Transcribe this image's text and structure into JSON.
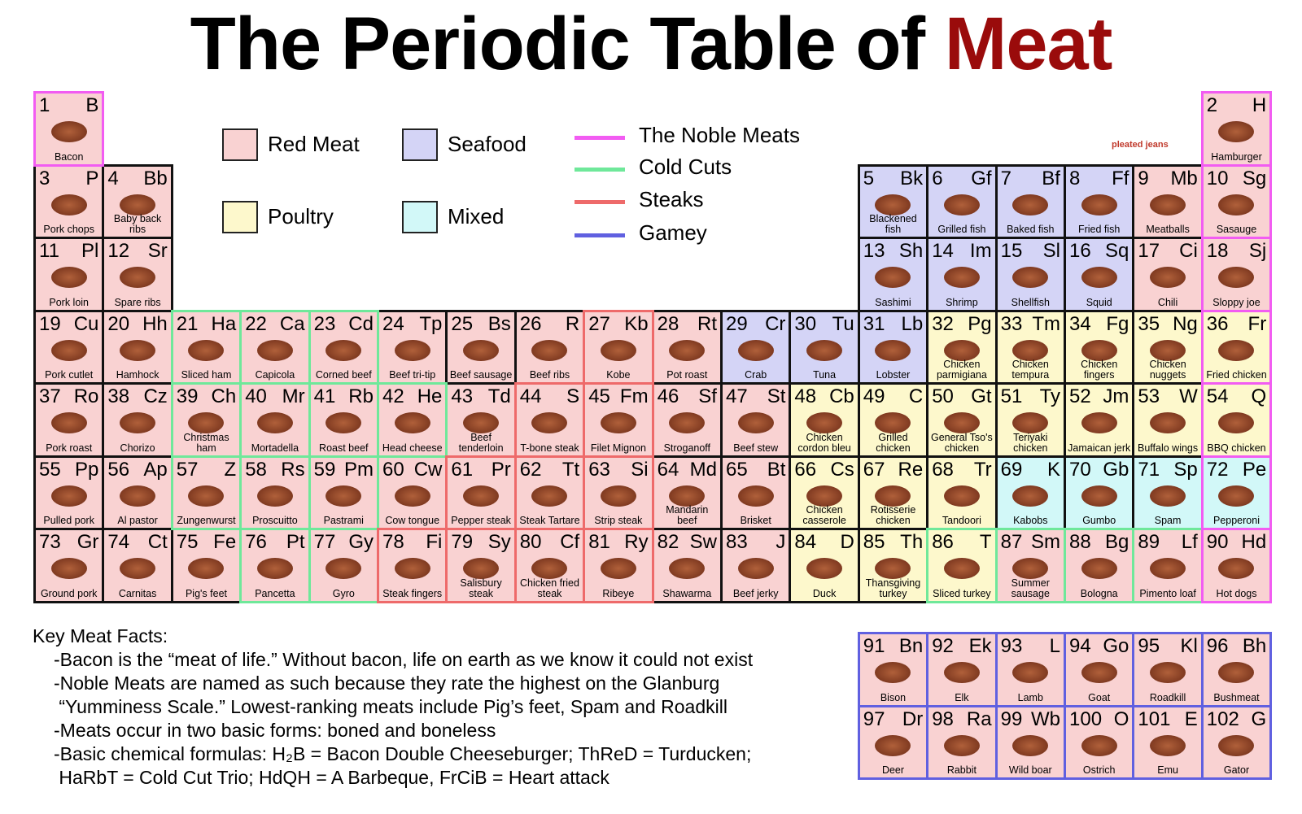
{
  "header": {
    "title": "The Periodic Table of ",
    "title_highlight": "Meat"
  },
  "logo": "pleated jeans",
  "legend": {
    "categories": [
      {
        "name": "Red Meat",
        "color": "#f9d2d2"
      },
      {
        "name": "Poultry",
        "color": "#fdf8cc"
      },
      {
        "name": "Seafood",
        "color": "#d4d4f6"
      },
      {
        "name": "Mixed",
        "color": "#d2f8f8"
      }
    ],
    "groups": [
      {
        "name": "The Noble Meats",
        "color": "#f25cf2"
      },
      {
        "name": "Cold Cuts",
        "color": "#6fe89a"
      },
      {
        "name": "Steaks",
        "color": "#ee6a6a"
      },
      {
        "name": "Gamey",
        "color": "#6060e0"
      }
    ]
  },
  "elements": [
    {
      "number": 1,
      "symbol": "B",
      "name": "Bacon",
      "category": "Red Meat",
      "group": "The Noble Meats"
    },
    {
      "number": 2,
      "symbol": "H",
      "name": "Hamburger",
      "category": "Red Meat",
      "group": "The Noble Meats"
    },
    {
      "number": 3,
      "symbol": "P",
      "name": "Pork chops",
      "category": "Red Meat",
      "group": null
    },
    {
      "number": 4,
      "symbol": "Bb",
      "name": "Baby back ribs",
      "category": "Red Meat",
      "group": null
    },
    {
      "number": 5,
      "symbol": "Bk",
      "name": "Blackened fish",
      "category": "Seafood",
      "group": null
    },
    {
      "number": 6,
      "symbol": "Gf",
      "name": "Grilled fish",
      "category": "Seafood",
      "group": null
    },
    {
      "number": 7,
      "symbol": "Bf",
      "name": "Baked fish",
      "category": "Seafood",
      "group": null
    },
    {
      "number": 8,
      "symbol": "Ff",
      "name": "Fried fish",
      "category": "Seafood",
      "group": null
    },
    {
      "number": 9,
      "symbol": "Mb",
      "name": "Meatballs",
      "category": "Red Meat",
      "group": null
    },
    {
      "number": 10,
      "symbol": "Sg",
      "name": "Sasauge",
      "category": "Red Meat",
      "group": "The Noble Meats"
    },
    {
      "number": 11,
      "symbol": "Pl",
      "name": "Pork loin",
      "category": "Red Meat",
      "group": null
    },
    {
      "number": 12,
      "symbol": "Sr",
      "name": "Spare ribs",
      "category": "Red Meat",
      "group": null
    },
    {
      "number": 13,
      "symbol": "Sh",
      "name": "Sashimi",
      "category": "Seafood",
      "group": null
    },
    {
      "number": 14,
      "symbol": "Im",
      "name": "Shrimp",
      "category": "Seafood",
      "group": null
    },
    {
      "number": 15,
      "symbol": "Sl",
      "name": "Shellfish",
      "category": "Seafood",
      "group": null
    },
    {
      "number": 16,
      "symbol": "Sq",
      "name": "Squid",
      "category": "Seafood",
      "group": null
    },
    {
      "number": 17,
      "symbol": "Ci",
      "name": "Chili",
      "category": "Red Meat",
      "group": null
    },
    {
      "number": 18,
      "symbol": "Sj",
      "name": "Sloppy joe",
      "category": "Red Meat",
      "group": "The Noble Meats"
    },
    {
      "number": 19,
      "symbol": "Cu",
      "name": "Pork cutlet",
      "category": "Red Meat",
      "group": null
    },
    {
      "number": 20,
      "symbol": "Hh",
      "name": "Hamhock",
      "category": "Red Meat",
      "group": null
    },
    {
      "number": 21,
      "symbol": "Ha",
      "name": "Sliced ham",
      "category": "Red Meat",
      "group": "Cold Cuts"
    },
    {
      "number": 22,
      "symbol": "Ca",
      "name": "Capicola",
      "category": "Red Meat",
      "group": "Cold Cuts"
    },
    {
      "number": 23,
      "symbol": "Cd",
      "name": "Corned beef",
      "category": "Red Meat",
      "group": "Cold Cuts"
    },
    {
      "number": 24,
      "symbol": "Tp",
      "name": "Beef tri-tip",
      "category": "Red Meat",
      "group": null
    },
    {
      "number": 25,
      "symbol": "Bs",
      "name": "Beef sausage",
      "category": "Red Meat",
      "group": null
    },
    {
      "number": 26,
      "symbol": "R",
      "name": "Beef ribs",
      "category": "Red Meat",
      "group": null
    },
    {
      "number": 27,
      "symbol": "Kb",
      "name": "Kobe",
      "category": "Red Meat",
      "group": "Steaks"
    },
    {
      "number": 28,
      "symbol": "Rt",
      "name": "Pot roast",
      "category": "Red Meat",
      "group": null
    },
    {
      "number": 29,
      "symbol": "Cr",
      "name": "Crab",
      "category": "Seafood",
      "group": null
    },
    {
      "number": 30,
      "symbol": "Tu",
      "name": "Tuna",
      "category": "Seafood",
      "group": null
    },
    {
      "number": 31,
      "symbol": "Lb",
      "name": "Lobster",
      "category": "Seafood",
      "group": null
    },
    {
      "number": 32,
      "symbol": "Pg",
      "name": "Chicken parmigiana",
      "category": "Poultry",
      "group": null
    },
    {
      "number": 33,
      "symbol": "Tm",
      "name": "Chicken tempura",
      "category": "Poultry",
      "group": null
    },
    {
      "number": 34,
      "symbol": "Fg",
      "name": "Chicken fingers",
      "category": "Poultry",
      "group": null
    },
    {
      "number": 35,
      "symbol": "Ng",
      "name": "Chicken nuggets",
      "category": "Poultry",
      "group": null
    },
    {
      "number": 36,
      "symbol": "Fr",
      "name": "Fried chicken",
      "category": "Poultry",
      "group": "The Noble Meats"
    },
    {
      "number": 37,
      "symbol": "Ro",
      "name": "Pork roast",
      "category": "Red Meat",
      "group": null
    },
    {
      "number": 38,
      "symbol": "Cz",
      "name": "Chorizo",
      "category": "Red Meat",
      "group": null
    },
    {
      "number": 39,
      "symbol": "Ch",
      "name": "Christmas ham",
      "category": "Red Meat",
      "group": "Cold Cuts"
    },
    {
      "number": 40,
      "symbol": "Mr",
      "name": "Mortadella",
      "category": "Red Meat",
      "group": "Cold Cuts"
    },
    {
      "number": 41,
      "symbol": "Rb",
      "name": "Roast beef",
      "category": "Red Meat",
      "group": "Cold Cuts"
    },
    {
      "number": 42,
      "symbol": "He",
      "name": "Head cheese",
      "category": "Red Meat",
      "group": "Cold Cuts"
    },
    {
      "number": 43,
      "symbol": "Td",
      "name": "Beef tenderloin",
      "category": "Red Meat",
      "group": null
    },
    {
      "number": 44,
      "symbol": "S",
      "name": "T-bone steak",
      "category": "Red Meat",
      "group": "Steaks"
    },
    {
      "number": 45,
      "symbol": "Fm",
      "name": "Filet Mignon",
      "category": "Red Meat",
      "group": "Steaks"
    },
    {
      "number": 46,
      "symbol": "Sf",
      "name": "Stroganoff",
      "category": "Red Meat",
      "group": null
    },
    {
      "number": 47,
      "symbol": "St",
      "name": "Beef stew",
      "category": "Red Meat",
      "group": null
    },
    {
      "number": 48,
      "symbol": "Cb",
      "name": "Chicken cordon bleu",
      "category": "Poultry",
      "group": null
    },
    {
      "number": 49,
      "symbol": "C",
      "name": "Grilled chicken",
      "category": "Poultry",
      "group": null
    },
    {
      "number": 50,
      "symbol": "Gt",
      "name": "General Tso's chicken",
      "category": "Poultry",
      "group": null
    },
    {
      "number": 51,
      "symbol": "Ty",
      "name": "Teriyaki chicken",
      "category": "Poultry",
      "group": null
    },
    {
      "number": 52,
      "symbol": "Jm",
      "name": "Jamaican jerk",
      "category": "Poultry",
      "group": null
    },
    {
      "number": 53,
      "symbol": "W",
      "name": "Buffalo wings",
      "category": "Poultry",
      "group": null
    },
    {
      "number": 54,
      "symbol": "Q",
      "name": "BBQ chicken",
      "category": "Poultry",
      "group": "The Noble Meats"
    },
    {
      "number": 55,
      "symbol": "Pp",
      "name": "Pulled pork",
      "category": "Red Meat",
      "group": null
    },
    {
      "number": 56,
      "symbol": "Ap",
      "name": "Al pastor",
      "category": "Red Meat",
      "group": null
    },
    {
      "number": 57,
      "symbol": "Z",
      "name": "Zungenwurst",
      "category": "Red Meat",
      "group": "Cold Cuts"
    },
    {
      "number": 58,
      "symbol": "Rs",
      "name": "Proscuitto",
      "category": "Red Meat",
      "group": "Cold Cuts"
    },
    {
      "number": 59,
      "symbol": "Pm",
      "name": "Pastrami",
      "category": "Red Meat",
      "group": null
    },
    {
      "number": 60,
      "symbol": "Cw",
      "name": "Cow tongue",
      "category": "Red Meat",
      "group": "Cold Cuts"
    },
    {
      "number": 61,
      "symbol": "Pr",
      "name": "Pepper steak",
      "category": "Red Meat",
      "group": "Steaks"
    },
    {
      "number": 62,
      "symbol": "Tt",
      "name": "Steak Tartare",
      "category": "Red Meat",
      "group": "Steaks"
    },
    {
      "number": 63,
      "symbol": "Si",
      "name": "Strip steak",
      "category": "Red Meat",
      "group": "Steaks"
    },
    {
      "number": 64,
      "symbol": "Md",
      "name": "Mandarin beef",
      "category": "Red Meat",
      "group": null
    },
    {
      "number": 65,
      "symbol": "Bt",
      "name": "Brisket",
      "category": "Red Meat",
      "group": null
    },
    {
      "number": 66,
      "symbol": "Cs",
      "name": "Chicken casserole",
      "category": "Poultry",
      "group": null
    },
    {
      "number": 67,
      "symbol": "Re",
      "name": "Rotisserie chicken",
      "category": "Poultry",
      "group": null
    },
    {
      "number": 68,
      "symbol": "Tr",
      "name": "Tandoori",
      "category": "Poultry",
      "group": null
    },
    {
      "number": 69,
      "symbol": "K",
      "name": "Kabobs",
      "category": "Mixed",
      "group": null
    },
    {
      "number": 70,
      "symbol": "Gb",
      "name": "Gumbo",
      "category": "Mixed",
      "group": null
    },
    {
      "number": 71,
      "symbol": "Sp",
      "name": "Spam",
      "category": "Mixed",
      "group": null
    },
    {
      "number": 72,
      "symbol": "Pe",
      "name": "Pepperoni",
      "category": "Mixed",
      "group": "The Noble Meats"
    },
    {
      "number": 73,
      "symbol": "Gr",
      "name": "Ground pork",
      "category": "Red Meat",
      "group": null
    },
    {
      "number": 74,
      "symbol": "Ct",
      "name": "Carnitas",
      "category": "Red Meat",
      "group": null
    },
    {
      "number": 75,
      "symbol": "Fe",
      "name": "Pig's feet",
      "category": "Red Meat",
      "group": null
    },
    {
      "number": 76,
      "symbol": "Pt",
      "name": "Pancetta",
      "category": "Red Meat",
      "group": "Cold Cuts"
    },
    {
      "number": 77,
      "symbol": "Gy",
      "name": "Gyro",
      "category": "Red Meat",
      "group": "Cold Cuts"
    },
    {
      "number": 78,
      "symbol": "Fi",
      "name": "Steak fingers",
      "category": "Red Meat",
      "group": "Steaks"
    },
    {
      "number": 79,
      "symbol": "Sy",
      "name": "Salisbury steak",
      "category": "Red Meat",
      "group": "Steaks"
    },
    {
      "number": 80,
      "symbol": "Cf",
      "name": "Chicken fried steak",
      "category": "Red Meat",
      "group": "Steaks"
    },
    {
      "number": 81,
      "symbol": "Ry",
      "name": "Ribeye",
      "category": "Red Meat",
      "group": "Steaks"
    },
    {
      "number": 82,
      "symbol": "Sw",
      "name": "Shawarma",
      "category": "Red Meat",
      "group": null
    },
    {
      "number": 83,
      "symbol": "J",
      "name": "Beef jerky",
      "category": "Red Meat",
      "group": null
    },
    {
      "number": 84,
      "symbol": "D",
      "name": "Duck",
      "category": "Poultry",
      "group": null
    },
    {
      "number": 85,
      "symbol": "Th",
      "name": "Thansgiving turkey",
      "category": "Poultry",
      "group": null
    },
    {
      "number": 86,
      "symbol": "T",
      "name": "Sliced turkey",
      "category": "Poultry",
      "group": "Cold Cuts"
    },
    {
      "number": 87,
      "symbol": "Sm",
      "name": "Summer sausage",
      "category": "Red Meat",
      "group": "Cold Cuts"
    },
    {
      "number": 88,
      "symbol": "Bg",
      "name": "Bologna",
      "category": "Red Meat",
      "group": "Cold Cuts"
    },
    {
      "number": 89,
      "symbol": "Lf",
      "name": "Pimento loaf",
      "category": "Red Meat",
      "group": "Cold Cuts"
    },
    {
      "number": 90,
      "symbol": "Hd",
      "name": "Hot dogs",
      "category": "Red Meat",
      "group": "The Noble Meats"
    },
    {
      "number": 91,
      "symbol": "Bn",
      "name": "Bison",
      "category": "Red Meat",
      "group": "Gamey"
    },
    {
      "number": 92,
      "symbol": "Ek",
      "name": "Elk",
      "category": "Red Meat",
      "group": "Gamey"
    },
    {
      "number": 93,
      "symbol": "L",
      "name": "Lamb",
      "category": "Red Meat",
      "group": "Gamey"
    },
    {
      "number": 94,
      "symbol": "Go",
      "name": "Goat",
      "category": "Red Meat",
      "group": "Gamey"
    },
    {
      "number": 95,
      "symbol": "Kl",
      "name": "Roadkill",
      "category": "Red Meat",
      "group": "Gamey"
    },
    {
      "number": 96,
      "symbol": "Bh",
      "name": "Bushmeat",
      "category": "Red Meat",
      "group": "Gamey"
    },
    {
      "number": 97,
      "symbol": "Dr",
      "name": "Deer",
      "category": "Red Meat",
      "group": "Gamey"
    },
    {
      "number": 98,
      "symbol": "Ra",
      "name": "Rabbit",
      "category": "Red Meat",
      "group": "Gamey"
    },
    {
      "number": 99,
      "symbol": "Wb",
      "name": "Wild boar",
      "category": "Red Meat",
      "group": "Gamey"
    },
    {
      "number": 100,
      "symbol": "O",
      "name": "Ostrich",
      "category": "Red Meat",
      "group": "Gamey"
    },
    {
      "number": 101,
      "symbol": "E",
      "name": "Emu",
      "category": "Red Meat",
      "group": "Gamey"
    },
    {
      "number": 102,
      "symbol": "G",
      "name": "Gator",
      "category": "Red Meat",
      "group": "Gamey"
    }
  ],
  "facts": {
    "heading": "Key Meat Facts:",
    "lines": [
      "-Bacon is the “meat of life.” Without bacon, life on earth as we know it could not exist",
      "-Noble Meats are named as such because they rate the highest on the Glanburg",
      " “Yumminess Scale.” Lowest-ranking meats include Pig’s feet, Spam and Roadkill",
      "-Meats occur in two basic forms: boned and boneless",
      "-Basic chemical formulas: H₂B = Bacon Double Cheeseburger; ThReD = Turducken;",
      " HaRbT = Cold Cut Trio; HdQH = A Barbeque, FrCiB = Heart attack"
    ]
  }
}
